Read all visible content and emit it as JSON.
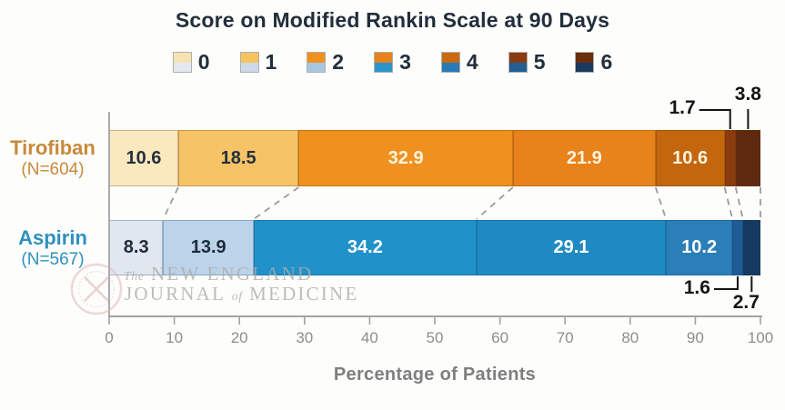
{
  "title": "Score on Modified Rankin Scale at 90 Days",
  "legend": {
    "items": [
      {
        "label": "0",
        "top_color": "#F6E3B2",
        "bottom_color": "#E4E9F1"
      },
      {
        "label": "1",
        "top_color": "#F6C45F",
        "bottom_color": "#CBD9EB"
      },
      {
        "label": "2",
        "top_color": "#F0911F",
        "bottom_color": "#A6C8E2"
      },
      {
        "label": "3",
        "top_color": "#E8821E",
        "bottom_color": "#2B95C9"
      },
      {
        "label": "4",
        "top_color": "#C96A12",
        "bottom_color": "#2A7AB8"
      },
      {
        "label": "5",
        "top_color": "#8A3C10",
        "bottom_color": "#235E94"
      },
      {
        "label": "6",
        "top_color": "#6B2D0C",
        "bottom_color": "#1A3A5E"
      }
    ]
  },
  "chart_data": {
    "type": "bar",
    "variant": "horizontal-stacked-100pct",
    "title": "Score on Modified Rankin Scale at 90 Days",
    "categories": [
      "0",
      "1",
      "2",
      "3",
      "4",
      "5",
      "6"
    ],
    "xlabel": "Percentage of Patients",
    "xlim": [
      0,
      100
    ],
    "x_ticks": [
      0,
      10,
      20,
      30,
      40,
      50,
      60,
      70,
      80,
      90,
      100
    ],
    "grid": false,
    "connectors_between_bars": "dashed",
    "series": [
      {
        "name": "Tirofiban",
        "n_label": "(N=604)",
        "name_color": "#C8893C",
        "values": [
          10.6,
          18.5,
          32.9,
          21.9,
          10.6,
          1.7,
          3.8
        ],
        "segment_colors": [
          "#FAE8BE",
          "#F7C367",
          "#F0911F",
          "#E8821B",
          "#C4660E",
          "#8A3C0F",
          "#5F2A0D"
        ],
        "value_label_colors": [
          "#25303C",
          "#25303C",
          "#FDF4DE",
          "#FDF4DE",
          "#FDF4DE",
          "#141414",
          "#141414"
        ]
      },
      {
        "name": "Aspirin",
        "n_label": "(N=567)",
        "name_color": "#2E91BE",
        "values": [
          8.3,
          13.9,
          34.2,
          29.1,
          10.2,
          1.6,
          2.7
        ],
        "segment_colors": [
          "#E1E7F0",
          "#BCD4EA",
          "#2191C9",
          "#1F8AC2",
          "#2A7FB8",
          "#1F5C97",
          "#15395F"
        ],
        "value_label_colors": [
          "#1E2B3A",
          "#1E2B3A",
          "#FFFFFF",
          "#FFFFFF",
          "#FFFFFF",
          "#141414",
          "#141414"
        ]
      }
    ]
  },
  "watermark": {
    "the": "The",
    "line1": "NEW ENGLAND",
    "line2a": "JOURNAL",
    "line2b": "of",
    "line2c": "MEDICINE"
  }
}
